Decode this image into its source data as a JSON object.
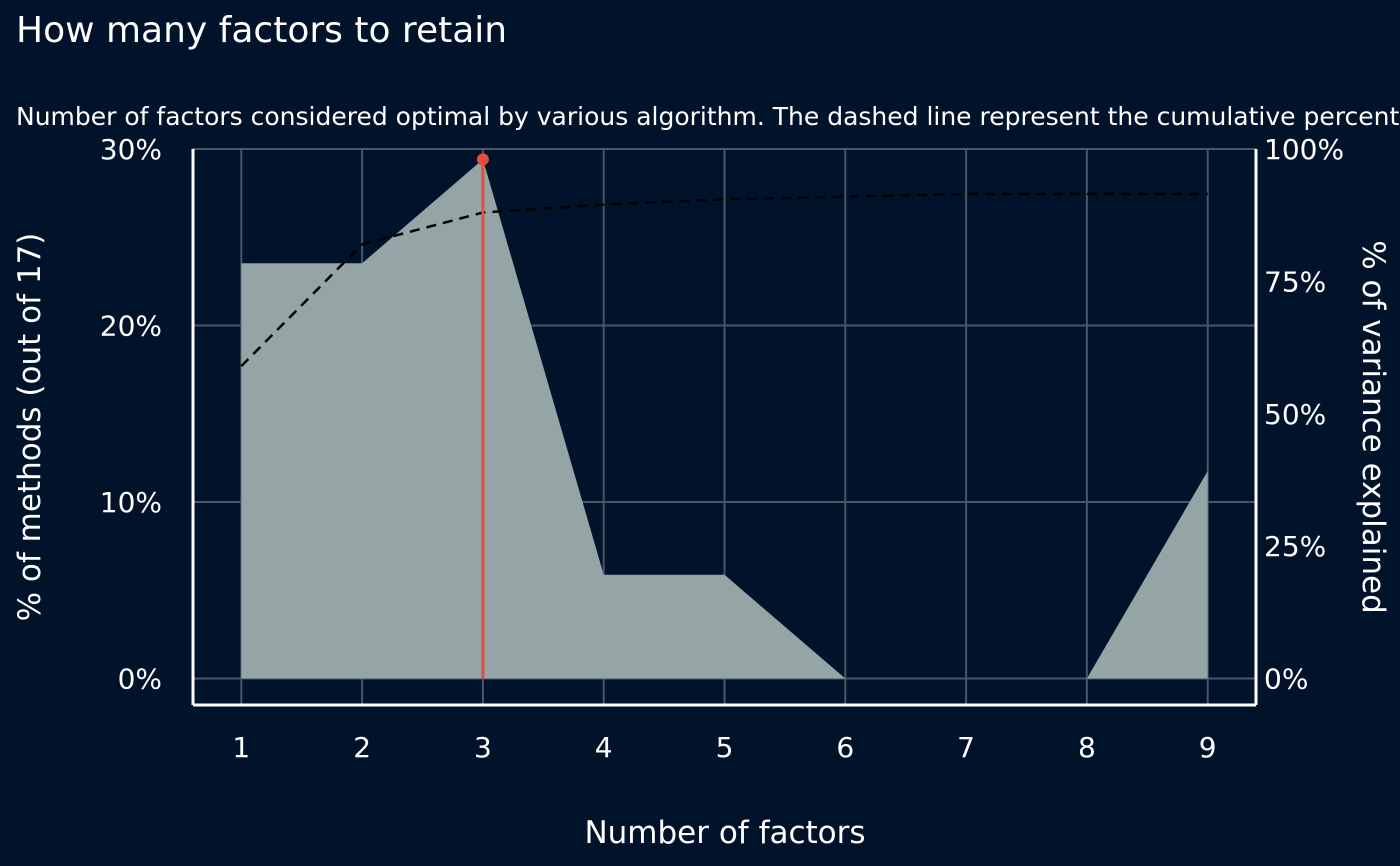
{
  "chart_data": {
    "type": "area",
    "title": "How many factors to retain",
    "subtitle": "Number of factors considered optimal by various algorithm. The dashed line represent the cumulative percentage of variance explained by the factors.",
    "xlabel": "Number of factors",
    "ylabel": "% of methods (out of 17)",
    "y2label": "% of variance explained",
    "x": [
      1,
      2,
      3,
      4,
      5,
      6,
      7,
      8,
      9
    ],
    "x_tick_labels": [
      "1",
      "2",
      "3",
      "4",
      "5",
      "6",
      "7",
      "8",
      "9"
    ],
    "xlim": [
      0.6,
      9.4
    ],
    "ylim": [
      -0.015,
      0.3
    ],
    "y_ticks": [
      0,
      0.1,
      0.2,
      0.3
    ],
    "y_tick_labels": [
      "0%",
      "10%",
      "20%",
      "30%"
    ],
    "y2lim": [
      0,
      1
    ],
    "y2_ticks": [
      0,
      0.25,
      0.5,
      0.75,
      1
    ],
    "y2_tick_labels": [
      "0%",
      "25%",
      "50%",
      "75%",
      "100%"
    ],
    "series": [
      {
        "kind": "area",
        "axis": "left",
        "values": [
          0.2353,
          0.2353,
          0.2941,
          0.0588,
          0.0588,
          0,
          0,
          0,
          0.1176
        ],
        "color": "#95a5a6"
      },
      {
        "kind": "dashed-line",
        "axis": "right",
        "values": [
          0.59,
          0.82,
          0.88,
          0.895,
          0.905,
          0.91,
          0.915,
          0.915,
          0.915
        ],
        "color": "#000000"
      }
    ],
    "highlight": {
      "x": 3,
      "value": 0.2941,
      "color": "#e74c3c"
    },
    "grid": true,
    "background": "#00132a"
  }
}
